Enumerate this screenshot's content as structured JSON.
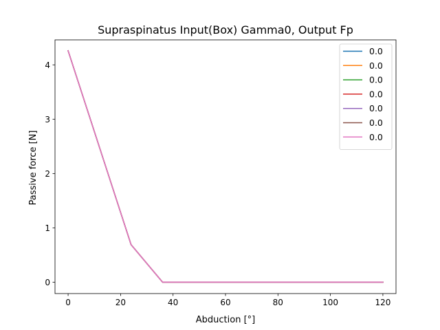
{
  "chart_data": {
    "type": "line",
    "title": "Supraspinatus Input(Box) Gamma0, Output Fp",
    "xlabel": "Abduction [°]",
    "ylabel": "Passive force [N]",
    "xlim": [
      -5,
      125
    ],
    "ylim": [
      -0.21,
      4.46
    ],
    "xticks": [
      0,
      20,
      40,
      60,
      80,
      100,
      120
    ],
    "yticks": [
      0,
      1,
      2,
      3,
      4
    ],
    "grid": false,
    "legend_position": "top-right",
    "x": [
      0,
      24,
      36,
      48,
      60,
      72,
      84,
      96,
      108,
      120
    ],
    "series": [
      {
        "name": "0.0",
        "color": "#1f77b4",
        "values": [
          4.26,
          0.69,
          0.0,
          0.0,
          0.0,
          0.0,
          0.0,
          0.0,
          0.0,
          0.0
        ]
      },
      {
        "name": "0.0",
        "color": "#ff7f0e",
        "values": [
          4.26,
          0.69,
          0.0,
          0.0,
          0.0,
          0.0,
          0.0,
          0.0,
          0.0,
          0.0
        ]
      },
      {
        "name": "0.0",
        "color": "#2ca02c",
        "values": [
          4.26,
          0.69,
          0.0,
          0.0,
          0.0,
          0.0,
          0.0,
          0.0,
          0.0,
          0.0
        ]
      },
      {
        "name": "0.0",
        "color": "#d62728",
        "values": [
          4.26,
          0.69,
          0.0,
          0.0,
          0.0,
          0.0,
          0.0,
          0.0,
          0.0,
          0.0
        ]
      },
      {
        "name": "0.0",
        "color": "#9467bd",
        "values": [
          4.26,
          0.69,
          0.0,
          0.0,
          0.0,
          0.0,
          0.0,
          0.0,
          0.0,
          0.0
        ]
      },
      {
        "name": "0.0",
        "color": "#8c564b",
        "values": [
          4.26,
          0.69,
          0.0,
          0.0,
          0.0,
          0.0,
          0.0,
          0.0,
          0.0,
          0.0
        ]
      },
      {
        "name": "0.0",
        "color": "#e377c2",
        "values": [
          4.26,
          0.69,
          0.0,
          0.0,
          0.0,
          0.0,
          0.0,
          0.0,
          0.0,
          0.0
        ]
      }
    ]
  }
}
